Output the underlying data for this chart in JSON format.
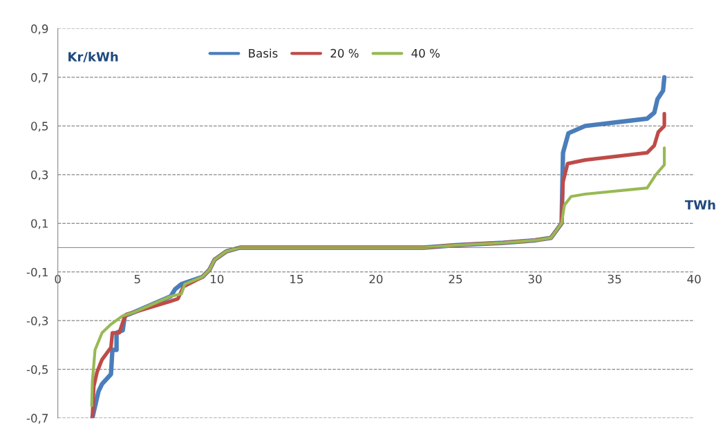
{
  "chart_data": {
    "type": "line",
    "xlabel": "TWh",
    "ylabel": "Kr/kWh",
    "xlim": [
      0,
      40
    ],
    "ylim": [
      -0.7,
      0.9
    ],
    "xticks": [
      0,
      5,
      10,
      15,
      20,
      25,
      30,
      35,
      40
    ],
    "yticks": [
      {
        "value": -0.7,
        "label": "-0,7"
      },
      {
        "value": -0.5,
        "label": "-0,5"
      },
      {
        "value": -0.3,
        "label": "-0,3"
      },
      {
        "value": -0.1,
        "label": "-0,1"
      },
      {
        "value": 0.1,
        "label": "0,1"
      },
      {
        "value": 0.3,
        "label": "0,3"
      },
      {
        "value": 0.5,
        "label": "0,5"
      },
      {
        "value": 0.7,
        "label": "0,7"
      },
      {
        "value": 0.9,
        "label": "0,9"
      }
    ],
    "grid": "y",
    "legend": "top",
    "marker": "none",
    "line_style": "solid",
    "series": [
      {
        "name": "Basis",
        "color": "#4a7ebb",
        "x": [
          2.17,
          2.56,
          2.78,
          3.34,
          3.43,
          3.69,
          3.69,
          4.08,
          4.21,
          4.77,
          7.1,
          7.38,
          7.77,
          9.1,
          9.54,
          9.85,
          10.6,
          11.45,
          15,
          20,
          23,
          25,
          28,
          30,
          31,
          31.67,
          31.76,
          32.1,
          33.15,
          37.05,
          37.5,
          37.7,
          38.05,
          38.13
        ],
        "values": [
          -0.7,
          -0.59,
          -0.56,
          -0.52,
          -0.42,
          -0.42,
          -0.35,
          -0.34,
          -0.28,
          -0.266,
          -0.2,
          -0.17,
          -0.15,
          -0.12,
          -0.09,
          -0.05,
          -0.015,
          0.0,
          0.0,
          0.0,
          0.0,
          0.01,
          0.02,
          0.03,
          0.04,
          0.1,
          0.39,
          0.47,
          0.5,
          0.53,
          0.555,
          0.61,
          0.645,
          0.7
        ]
      },
      {
        "name": "20 %",
        "color": "#be4b48",
        "x": [
          2.17,
          2.26,
          2.47,
          2.78,
          3.34,
          3.43,
          3.86,
          4.12,
          4.3,
          4.77,
          7.1,
          7.55,
          7.9,
          9.1,
          9.54,
          9.85,
          10.6,
          11.45,
          15,
          20,
          23,
          25,
          28,
          30,
          31,
          31.67,
          31.76,
          32.05,
          33.15,
          37.05,
          37.5,
          37.75,
          38.13,
          38.13
        ],
        "values": [
          -0.7,
          -0.57,
          -0.51,
          -0.46,
          -0.41,
          -0.35,
          -0.35,
          -0.3,
          -0.275,
          -0.266,
          -0.22,
          -0.21,
          -0.16,
          -0.12,
          -0.09,
          -0.05,
          -0.015,
          0.0,
          0.0,
          0.0,
          0.0,
          0.01,
          0.02,
          0.03,
          0.04,
          0.1,
          0.27,
          0.345,
          0.36,
          0.39,
          0.42,
          0.475,
          0.5,
          0.55
        ]
      },
      {
        "name": "40 %",
        "color": "#98b954",
        "x": [
          2.13,
          2.17,
          2.34,
          2.78,
          3.34,
          4.08,
          4.77,
          7.1,
          7.77,
          7.98,
          9.1,
          9.54,
          9.85,
          10.6,
          11.45,
          15,
          20,
          23,
          25,
          28,
          30,
          31,
          31.67,
          31.85,
          32.27,
          33.15,
          37.05,
          37.6,
          38.13,
          38.13
        ],
        "values": [
          -0.65,
          -0.55,
          -0.42,
          -0.35,
          -0.315,
          -0.28,
          -0.266,
          -0.2,
          -0.19,
          -0.15,
          -0.12,
          -0.09,
          -0.05,
          -0.015,
          0.0,
          0.0,
          0.0,
          0.0,
          0.01,
          0.02,
          0.03,
          0.04,
          0.1,
          0.175,
          0.21,
          0.22,
          0.245,
          0.3,
          0.34,
          0.41
        ]
      }
    ]
  }
}
